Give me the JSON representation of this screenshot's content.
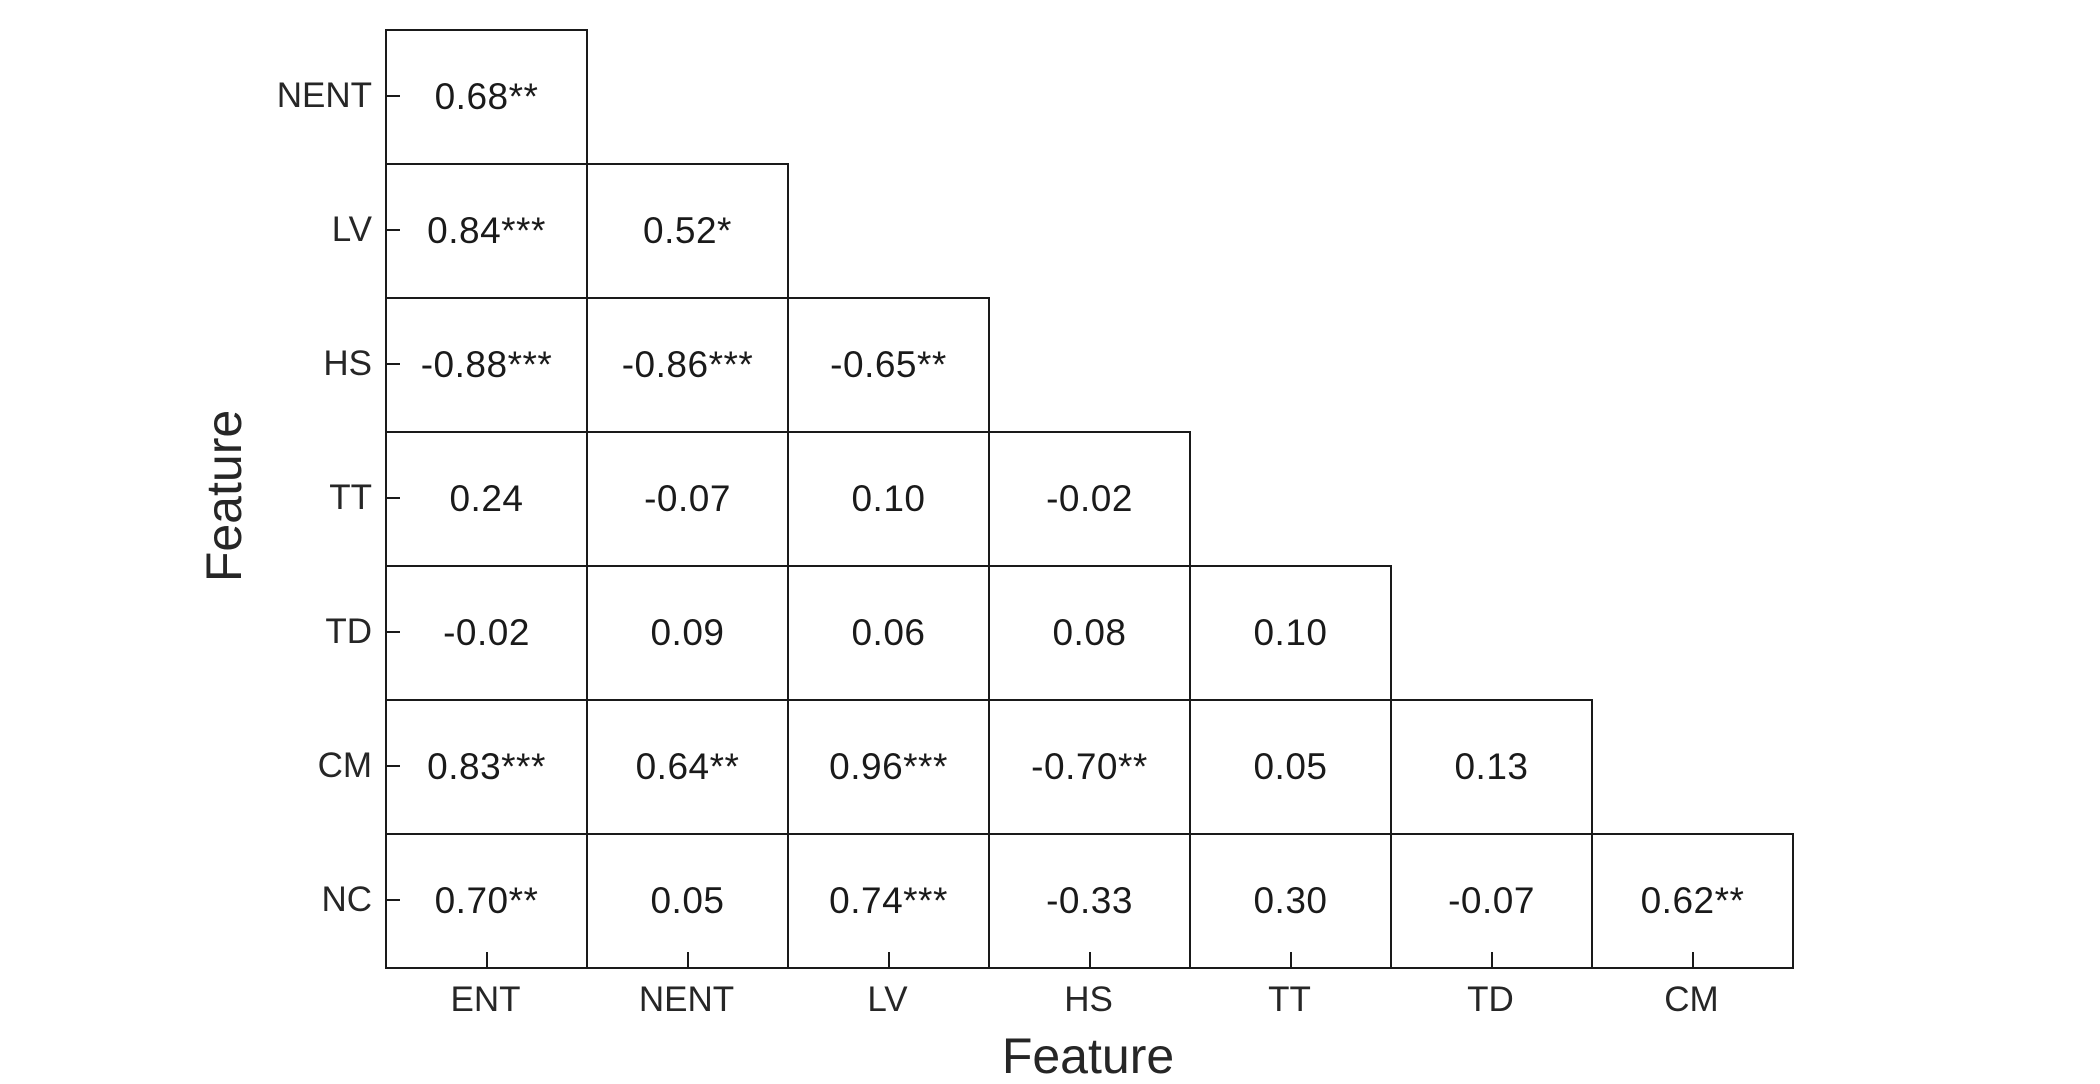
{
  "chart_data": {
    "type": "heatmap",
    "variant": "lower-triangular-correlation-matrix",
    "title": "",
    "xlabel": "Feature",
    "ylabel": "Feature",
    "x_categories": [
      "ENT",
      "NENT",
      "LV",
      "HS",
      "TT",
      "TD",
      "CM"
    ],
    "y_categories": [
      "NENT",
      "LV",
      "HS",
      "TT",
      "TD",
      "CM",
      "NC"
    ],
    "cell_text": [
      [
        "0.68**"
      ],
      [
        "0.84***",
        "0.52*"
      ],
      [
        "-0.88***",
        "-0.86***",
        "-0.65**"
      ],
      [
        "0.24",
        "-0.07",
        "0.10",
        "-0.02"
      ],
      [
        "-0.02",
        "0.09",
        "0.06",
        "0.08",
        "0.10"
      ],
      [
        "0.83***",
        "0.64**",
        "0.96***",
        "-0.70**",
        "0.05",
        "0.13"
      ],
      [
        "0.70**",
        "0.05",
        "0.74***",
        "-0.33",
        "0.30",
        "-0.07",
        "0.62**"
      ]
    ],
    "values": [
      [
        0.68
      ],
      [
        0.84,
        0.52
      ],
      [
        -0.88,
        -0.86,
        -0.65
      ],
      [
        0.24,
        -0.07,
        0.1,
        -0.02
      ],
      [
        -0.02,
        0.09,
        0.06,
        0.08,
        0.1
      ],
      [
        0.83,
        0.64,
        0.96,
        -0.7,
        0.05,
        0.13
      ],
      [
        0.7,
        0.05,
        0.74,
        -0.33,
        0.3,
        -0.07,
        0.62
      ]
    ],
    "significance_stars": [
      [
        2
      ],
      [
        3,
        1
      ],
      [
        3,
        3,
        2
      ],
      [
        0,
        0,
        0,
        0
      ],
      [
        0,
        0,
        0,
        0,
        0
      ],
      [
        3,
        2,
        3,
        2,
        0,
        0
      ],
      [
        2,
        0,
        3,
        0,
        0,
        0,
        2
      ]
    ],
    "layout_hints": {
      "grid": "off",
      "legend": "none",
      "cells_outlined": true,
      "fill": "white"
    },
    "colors": {
      "text": "#1a1a1a",
      "line": "#1a1a1a",
      "background": "#ffffff"
    }
  }
}
